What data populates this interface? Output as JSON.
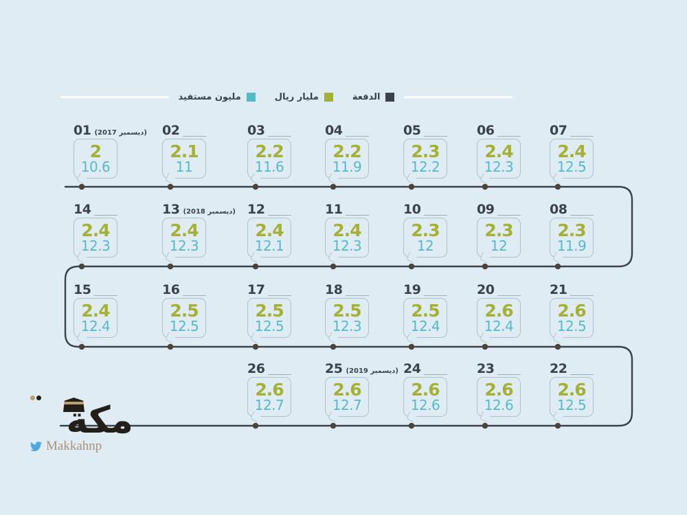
{
  "legend": {
    "items": [
      {
        "label": "الدفعة",
        "color": "#3b4249"
      },
      {
        "label": "مليار ريال",
        "color": "#a5b134"
      },
      {
        "label": "مليون مستفيد",
        "color": "#54bac8"
      }
    ]
  },
  "rows": [
    {
      "callouts": [
        {
          "number": "01",
          "date": "(ديسمبر 2017)",
          "billion_riyal": "2",
          "million_beneficiaries": "10.6",
          "col": 0
        },
        {
          "number": "02",
          "billion_riyal": "2.1",
          "million_beneficiaries": "11",
          "col": 1
        },
        {
          "number": "03",
          "billion_riyal": "2.2",
          "million_beneficiaries": "11.6",
          "col": 2
        },
        {
          "number": "04",
          "billion_riyal": "2.2",
          "million_beneficiaries": "11.9",
          "col": 3
        },
        {
          "number": "05",
          "billion_riyal": "2.3",
          "million_beneficiaries": "12.2",
          "col": 4
        },
        {
          "number": "06",
          "billion_riyal": "2.4",
          "million_beneficiaries": "12.3",
          "col": 5
        },
        {
          "number": "07",
          "billion_riyal": "2.4",
          "million_beneficiaries": "12.5",
          "col": 6
        }
      ]
    },
    {
      "callouts": [
        {
          "number": "14",
          "billion_riyal": "2.4",
          "million_beneficiaries": "12.3",
          "col": 0
        },
        {
          "number": "13",
          "date": "(ديسمبر 2018)",
          "billion_riyal": "2.4",
          "million_beneficiaries": "12.3",
          "col": 1
        },
        {
          "number": "12",
          "billion_riyal": "2.4",
          "million_beneficiaries": "12.1",
          "col": 2
        },
        {
          "number": "11",
          "billion_riyal": "2.4",
          "million_beneficiaries": "12.3",
          "col": 3
        },
        {
          "number": "10",
          "billion_riyal": "2.3",
          "million_beneficiaries": "12",
          "col": 4
        },
        {
          "number": "09",
          "billion_riyal": "2.3",
          "million_beneficiaries": "12",
          "col": 5
        },
        {
          "number": "08",
          "billion_riyal": "2.3",
          "million_beneficiaries": "11.9",
          "col": 6
        }
      ]
    },
    {
      "callouts": [
        {
          "number": "15",
          "billion_riyal": "2.4",
          "million_beneficiaries": "12.4",
          "col": 0
        },
        {
          "number": "16",
          "billion_riyal": "2.5",
          "million_beneficiaries": "12.5",
          "col": 1
        },
        {
          "number": "17",
          "billion_riyal": "2.5",
          "million_beneficiaries": "12.5",
          "col": 2
        },
        {
          "number": "18",
          "billion_riyal": "2.5",
          "million_beneficiaries": "12.3",
          "col": 3
        },
        {
          "number": "19",
          "billion_riyal": "2.5",
          "million_beneficiaries": "12.4",
          "col": 4
        },
        {
          "number": "20",
          "billion_riyal": "2.6",
          "million_beneficiaries": "12.4",
          "col": 5
        },
        {
          "number": "21",
          "billion_riyal": "2.6",
          "million_beneficiaries": "12.5",
          "col": 6
        }
      ]
    },
    {
      "callouts": [
        {
          "number": "26",
          "billion_riyal": "2.6",
          "million_beneficiaries": "12.7",
          "col": 2
        },
        {
          "number": "25",
          "date": "(ديسمبر 2019)",
          "billion_riyal": "2.6",
          "million_beneficiaries": "12.7",
          "col": 3
        },
        {
          "number": "24",
          "billion_riyal": "2.6",
          "million_beneficiaries": "12.6",
          "col": 4
        },
        {
          "number": "23",
          "billion_riyal": "2.6",
          "million_beneficiaries": "12.6",
          "col": 5
        },
        {
          "number": "22",
          "billion_riyal": "2.6",
          "million_beneficiaries": "12.5",
          "col": 6
        }
      ]
    }
  ],
  "footer": {
    "logo_text": "مكة",
    "twitter_handle": "Makkahnp"
  },
  "colors": {
    "background": "#dfecf4",
    "dark": "#3b4249",
    "green": "#a5b134",
    "teal": "#54bac8",
    "line": "#3a4046",
    "bubble_border": "#b2c1c9",
    "twitter_blue": "#4da7e0",
    "logo_gold": "#bd9e72"
  },
  "chart_data": {
    "type": "line",
    "title": "",
    "categories": [
      "01",
      "02",
      "03",
      "04",
      "05",
      "06",
      "07",
      "08",
      "09",
      "10",
      "11",
      "12",
      "13",
      "14",
      "15",
      "16",
      "17",
      "18",
      "19",
      "20",
      "21",
      "22",
      "23",
      "24",
      "25",
      "26"
    ],
    "series": [
      {
        "name": "مليار ريال",
        "values": [
          2,
          2.1,
          2.2,
          2.2,
          2.3,
          2.4,
          2.4,
          2.3,
          2.3,
          2.3,
          2.4,
          2.4,
          2.4,
          2.4,
          2.4,
          2.5,
          2.5,
          2.5,
          2.5,
          2.6,
          2.6,
          2.6,
          2.6,
          2.6,
          2.6,
          2.6
        ]
      },
      {
        "name": "مليون مستفيد",
        "values": [
          10.6,
          11,
          11.6,
          11.9,
          12.2,
          12.3,
          12.5,
          11.9,
          12,
          12,
          12.3,
          12.1,
          12.3,
          12.3,
          12.4,
          12.5,
          12.5,
          12.3,
          12.4,
          12.4,
          12.5,
          12.5,
          12.6,
          12.6,
          12.7,
          12.7
        ]
      }
    ],
    "annotations": [
      {
        "category": "01",
        "label": "(ديسمبر 2017)"
      },
      {
        "category": "13",
        "label": "(ديسمبر 2018)"
      },
      {
        "category": "25",
        "label": "(ديسمبر 2019)"
      }
    ],
    "legend_position": "top",
    "layout": "serpentine-timeline, 4 rows: 01-07 LTR, 08-14 RTL, 15-21 LTR, 22-26 RTL"
  }
}
